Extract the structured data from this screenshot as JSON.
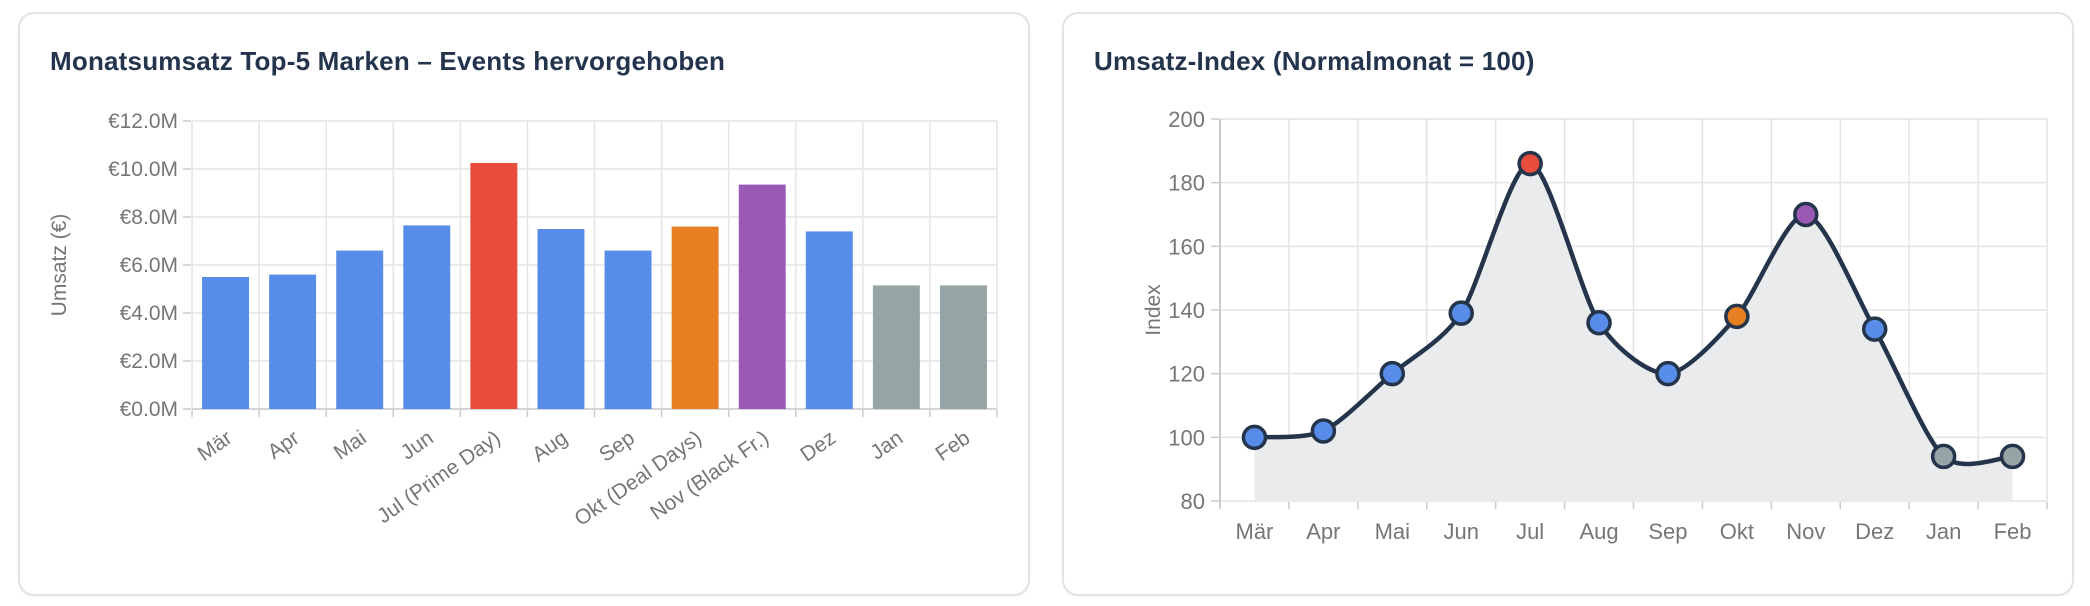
{
  "page": {
    "background": "#ffffff"
  },
  "palette": {
    "blue": "#588ce9",
    "red": "#e74c3c",
    "orange": "#e67e22",
    "purple": "#9b59b6",
    "gray": "#95a5a6",
    "navy": "#24344a",
    "title_color": "#24344d",
    "tick_text": "#767676",
    "grid": "#e3e4e6",
    "axis": "#c7cbd0",
    "area_fill": "#e9ebed",
    "card_border": "#dfe4e9",
    "card_bg": "#ffffff"
  },
  "chart_data": [
    {
      "type": "bar",
      "title": "Monatsumsatz Top-5 Marken – Events hervorgehoben",
      "ylabel": "Umsatz (€)",
      "xlabel": "",
      "unit": "M€",
      "categories": [
        "Mär",
        "Apr",
        "Mai",
        "Jun",
        "Jul (Prime Day)",
        "Aug",
        "Sep",
        "Okt (Deal Days)",
        "Nov (Black Fr.)",
        "Dez",
        "Jan",
        "Feb"
      ],
      "values": [
        5.5,
        5.6,
        6.6,
        7.65,
        10.25,
        7.5,
        6.6,
        7.6,
        9.35,
        7.4,
        5.15,
        5.15
      ],
      "bar_colors": [
        "#588ce9",
        "#588ce9",
        "#588ce9",
        "#588ce9",
        "#e74c3c",
        "#588ce9",
        "#588ce9",
        "#e67e22",
        "#9b59b6",
        "#588ce9",
        "#95a5a6",
        "#95a5a6"
      ],
      "highlighted_events": [
        "Jul (Prime Day)",
        "Okt (Deal Days)",
        "Nov (Black Fr.)"
      ],
      "ylim": [
        0,
        12
      ],
      "ytick_values": [
        0,
        2,
        4,
        6,
        8,
        10,
        12
      ],
      "ytick_labels": [
        "€0.0M",
        "€2.0M",
        "€4.0M",
        "€6.0M",
        "€8.0M",
        "€10.0M",
        "€12.0M"
      ],
      "grid": true,
      "legend": "none",
      "xlabel_rotation_deg": -35
    },
    {
      "type": "line",
      "title": "Umsatz-Index (Normalmonat = 100)",
      "ylabel": "Index",
      "xlabel": "",
      "categories": [
        "Mär",
        "Apr",
        "Mai",
        "Jun",
        "Jul",
        "Aug",
        "Sep",
        "Okt",
        "Nov",
        "Dez",
        "Jan",
        "Feb"
      ],
      "values": [
        100,
        102,
        120,
        139,
        186,
        136,
        120,
        138,
        170,
        134,
        94,
        94
      ],
      "point_colors": [
        "#588ce9",
        "#588ce9",
        "#588ce9",
        "#588ce9",
        "#e74c3c",
        "#588ce9",
        "#588ce9",
        "#e67e22",
        "#9b59b6",
        "#588ce9",
        "#95a5a6",
        "#95a5a6"
      ],
      "line_color": "#24344a",
      "area_fill": "#e9ebed",
      "ylim": [
        80,
        200
      ],
      "ytick_values": [
        80,
        100,
        120,
        140,
        160,
        180,
        200
      ],
      "ytick_labels": [
        "80",
        "100",
        "120",
        "140",
        "160",
        "180",
        "200"
      ],
      "grid": true,
      "legend": "none"
    }
  ]
}
